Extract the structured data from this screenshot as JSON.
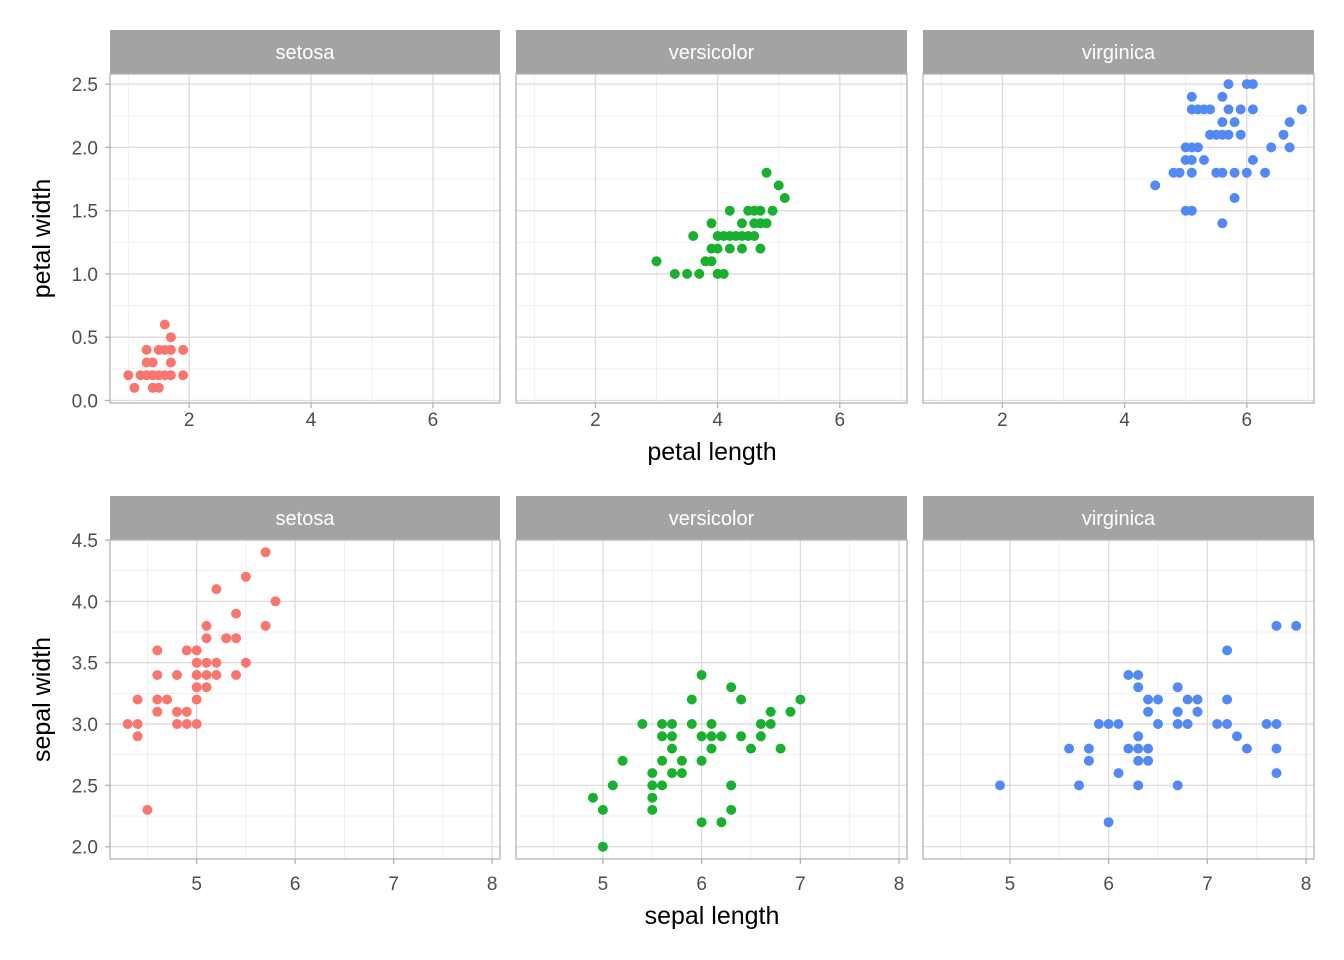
{
  "colors": {
    "setosa": "#F8766D",
    "versicolor": "#19B02F",
    "virginica": "#5289F5",
    "strip": "#A3A3A3",
    "grid_major": "#DCDCDC",
    "grid_minor": "#ECECEC",
    "border": "#B3B3B3"
  },
  "chart_data": [
    {
      "type": "scatter",
      "facet": "species",
      "xlabel": "petal length",
      "ylabel": "petal width",
      "xlim": [
        0.7,
        7.1
      ],
      "ylim": [
        -0.02,
        2.58
      ],
      "xticks": [
        2,
        4,
        6
      ],
      "yticks": [
        0.0,
        0.5,
        1.0,
        1.5,
        2.0,
        2.5
      ],
      "ytick_labels": [
        "0.0",
        "0.5",
        "1.0",
        "1.5",
        "2.0",
        "2.5"
      ],
      "grid": true,
      "panels": [
        {
          "label": "setosa",
          "color": "#F8766D",
          "points": [
            [
              1.0,
              0.2
            ],
            [
              1.1,
              0.1
            ],
            [
              1.2,
              0.2
            ],
            [
              1.3,
              0.2
            ],
            [
              1.3,
              0.3
            ],
            [
              1.3,
              0.4
            ],
            [
              1.4,
              0.1
            ],
            [
              1.4,
              0.2
            ],
            [
              1.4,
              0.3
            ],
            [
              1.5,
              0.1
            ],
            [
              1.5,
              0.2
            ],
            [
              1.5,
              0.4
            ],
            [
              1.6,
              0.2
            ],
            [
              1.6,
              0.4
            ],
            [
              1.6,
              0.6
            ],
            [
              1.7,
              0.2
            ],
            [
              1.7,
              0.3
            ],
            [
              1.7,
              0.4
            ],
            [
              1.7,
              0.5
            ],
            [
              1.9,
              0.2
            ],
            [
              1.9,
              0.4
            ]
          ]
        },
        {
          "label": "versicolor",
          "color": "#19B02F",
          "points": [
            [
              3.0,
              1.1
            ],
            [
              3.3,
              1.0
            ],
            [
              3.5,
              1.0
            ],
            [
              3.6,
              1.3
            ],
            [
              3.7,
              1.0
            ],
            [
              3.8,
              1.1
            ],
            [
              3.9,
              1.1
            ],
            [
              3.9,
              1.2
            ],
            [
              3.9,
              1.4
            ],
            [
              4.0,
              1.0
            ],
            [
              4.0,
              1.2
            ],
            [
              4.0,
              1.3
            ],
            [
              4.1,
              1.0
            ],
            [
              4.1,
              1.3
            ],
            [
              4.2,
              1.2
            ],
            [
              4.2,
              1.3
            ],
            [
              4.2,
              1.5
            ],
            [
              4.3,
              1.3
            ],
            [
              4.4,
              1.2
            ],
            [
              4.4,
              1.3
            ],
            [
              4.4,
              1.4
            ],
            [
              4.5,
              1.3
            ],
            [
              4.5,
              1.5
            ],
            [
              4.6,
              1.3
            ],
            [
              4.6,
              1.4
            ],
            [
              4.6,
              1.5
            ],
            [
              4.7,
              1.2
            ],
            [
              4.7,
              1.4
            ],
            [
              4.7,
              1.5
            ],
            [
              4.8,
              1.4
            ],
            [
              4.8,
              1.8
            ],
            [
              4.9,
              1.5
            ],
            [
              5.0,
              1.7
            ],
            [
              5.1,
              1.6
            ]
          ]
        },
        {
          "label": "virginica",
          "color": "#5289F5",
          "points": [
            [
              4.5,
              1.7
            ],
            [
              4.8,
              1.8
            ],
            [
              4.9,
              1.8
            ],
            [
              5.0,
              1.5
            ],
            [
              5.0,
              1.9
            ],
            [
              5.0,
              2.0
            ],
            [
              5.1,
              1.5
            ],
            [
              5.1,
              1.8
            ],
            [
              5.1,
              1.9
            ],
            [
              5.1,
              2.0
            ],
            [
              5.1,
              2.3
            ],
            [
              5.1,
              2.4
            ],
            [
              5.2,
              2.0
            ],
            [
              5.2,
              2.3
            ],
            [
              5.3,
              1.9
            ],
            [
              5.3,
              2.3
            ],
            [
              5.4,
              2.1
            ],
            [
              5.4,
              2.3
            ],
            [
              5.5,
              1.8
            ],
            [
              5.5,
              2.1
            ],
            [
              5.6,
              1.4
            ],
            [
              5.6,
              1.8
            ],
            [
              5.6,
              2.1
            ],
            [
              5.6,
              2.2
            ],
            [
              5.6,
              2.4
            ],
            [
              5.7,
              2.1
            ],
            [
              5.7,
              2.3
            ],
            [
              5.7,
              2.5
            ],
            [
              5.8,
              1.6
            ],
            [
              5.8,
              1.8
            ],
            [
              5.8,
              2.2
            ],
            [
              5.9,
              2.1
            ],
            [
              5.9,
              2.3
            ],
            [
              6.0,
              1.8
            ],
            [
              6.0,
              2.5
            ],
            [
              6.1,
              1.9
            ],
            [
              6.1,
              2.3
            ],
            [
              6.1,
              2.5
            ],
            [
              6.3,
              1.8
            ],
            [
              6.4,
              2.0
            ],
            [
              6.6,
              2.1
            ],
            [
              6.7,
              2.0
            ],
            [
              6.7,
              2.2
            ],
            [
              6.9,
              2.3
            ]
          ]
        }
      ]
    },
    {
      "type": "scatter",
      "facet": "species",
      "xlabel": "sepal length",
      "ylabel": "sepal width",
      "xlim": [
        4.12,
        8.08
      ],
      "ylim": [
        1.9,
        4.5
      ],
      "xticks": [
        5,
        6,
        7,
        8
      ],
      "yticks": [
        2.0,
        2.5,
        3.0,
        3.5,
        4.0,
        4.5
      ],
      "ytick_labels": [
        "2.0",
        "2.5",
        "3.0",
        "3.5",
        "4.0",
        "4.5"
      ],
      "grid": true,
      "panels": [
        {
          "label": "setosa",
          "color": "#F8766D",
          "points": [
            [
              4.3,
              3.0
            ],
            [
              4.4,
              2.9
            ],
            [
              4.4,
              3.0
            ],
            [
              4.4,
              3.2
            ],
            [
              4.5,
              2.3
            ],
            [
              4.6,
              3.1
            ],
            [
              4.6,
              3.2
            ],
            [
              4.6,
              3.4
            ],
            [
              4.6,
              3.6
            ],
            [
              4.7,
              3.2
            ],
            [
              4.8,
              3.0
            ],
            [
              4.8,
              3.1
            ],
            [
              4.8,
              3.4
            ],
            [
              4.9,
              3.0
            ],
            [
              4.9,
              3.1
            ],
            [
              4.9,
              3.6
            ],
            [
              5.0,
              3.0
            ],
            [
              5.0,
              3.2
            ],
            [
              5.0,
              3.3
            ],
            [
              5.0,
              3.4
            ],
            [
              5.0,
              3.5
            ],
            [
              5.0,
              3.6
            ],
            [
              5.1,
              3.3
            ],
            [
              5.1,
              3.4
            ],
            [
              5.1,
              3.5
            ],
            [
              5.1,
              3.7
            ],
            [
              5.1,
              3.8
            ],
            [
              5.2,
              3.4
            ],
            [
              5.2,
              3.5
            ],
            [
              5.2,
              4.1
            ],
            [
              5.3,
              3.7
            ],
            [
              5.4,
              3.4
            ],
            [
              5.4,
              3.7
            ],
            [
              5.4,
              3.9
            ],
            [
              5.5,
              3.5
            ],
            [
              5.5,
              4.2
            ],
            [
              5.7,
              3.8
            ],
            [
              5.7,
              4.4
            ],
            [
              5.8,
              4.0
            ]
          ]
        },
        {
          "label": "versicolor",
          "color": "#19B02F",
          "points": [
            [
              4.9,
              2.4
            ],
            [
              5.0,
              2.0
            ],
            [
              5.0,
              2.3
            ],
            [
              5.1,
              2.5
            ],
            [
              5.2,
              2.7
            ],
            [
              5.4,
              3.0
            ],
            [
              5.5,
              2.3
            ],
            [
              5.5,
              2.4
            ],
            [
              5.5,
              2.5
            ],
            [
              5.5,
              2.6
            ],
            [
              5.6,
              2.5
            ],
            [
              5.6,
              2.7
            ],
            [
              5.6,
              2.9
            ],
            [
              5.6,
              3.0
            ],
            [
              5.7,
              2.6
            ],
            [
              5.7,
              2.8
            ],
            [
              5.7,
              2.9
            ],
            [
              5.7,
              3.0
            ],
            [
              5.8,
              2.6
            ],
            [
              5.8,
              2.7
            ],
            [
              5.9,
              3.0
            ],
            [
              5.9,
              3.2
            ],
            [
              6.0,
              2.2
            ],
            [
              6.0,
              2.7
            ],
            [
              6.0,
              2.9
            ],
            [
              6.0,
              3.4
            ],
            [
              6.1,
              2.8
            ],
            [
              6.1,
              2.9
            ],
            [
              6.1,
              3.0
            ],
            [
              6.2,
              2.2
            ],
            [
              6.2,
              2.9
            ],
            [
              6.3,
              2.3
            ],
            [
              6.3,
              2.5
            ],
            [
              6.3,
              3.3
            ],
            [
              6.4,
              2.9
            ],
            [
              6.4,
              3.2
            ],
            [
              6.5,
              2.8
            ],
            [
              6.6,
              2.9
            ],
            [
              6.6,
              3.0
            ],
            [
              6.7,
              3.0
            ],
            [
              6.7,
              3.1
            ],
            [
              6.8,
              2.8
            ],
            [
              6.9,
              3.1
            ],
            [
              7.0,
              3.2
            ]
          ]
        },
        {
          "label": "virginica",
          "color": "#5289F5",
          "points": [
            [
              4.9,
              2.5
            ],
            [
              5.6,
              2.8
            ],
            [
              5.7,
              2.5
            ],
            [
              5.8,
              2.7
            ],
            [
              5.8,
              2.8
            ],
            [
              5.9,
              3.0
            ],
            [
              6.0,
              2.2
            ],
            [
              6.0,
              3.0
            ],
            [
              6.1,
              2.6
            ],
            [
              6.1,
              3.0
            ],
            [
              6.2,
              2.8
            ],
            [
              6.2,
              3.4
            ],
            [
              6.3,
              2.5
            ],
            [
              6.3,
              2.7
            ],
            [
              6.3,
              2.8
            ],
            [
              6.3,
              2.9
            ],
            [
              6.3,
              3.3
            ],
            [
              6.3,
              3.4
            ],
            [
              6.4,
              2.7
            ],
            [
              6.4,
              2.8
            ],
            [
              6.4,
              3.1
            ],
            [
              6.4,
              3.2
            ],
            [
              6.5,
              3.0
            ],
            [
              6.5,
              3.2
            ],
            [
              6.7,
              2.5
            ],
            [
              6.7,
              3.0
            ],
            [
              6.7,
              3.1
            ],
            [
              6.7,
              3.3
            ],
            [
              6.8,
              3.0
            ],
            [
              6.8,
              3.2
            ],
            [
              6.9,
              3.1
            ],
            [
              6.9,
              3.2
            ],
            [
              7.1,
              3.0
            ],
            [
              7.2,
              3.0
            ],
            [
              7.2,
              3.2
            ],
            [
              7.2,
              3.6
            ],
            [
              7.3,
              2.9
            ],
            [
              7.4,
              2.8
            ],
            [
              7.6,
              3.0
            ],
            [
              7.7,
              2.6
            ],
            [
              7.7,
              2.8
            ],
            [
              7.7,
              3.0
            ],
            [
              7.7,
              3.8
            ],
            [
              7.9,
              3.8
            ]
          ]
        }
      ]
    }
  ]
}
